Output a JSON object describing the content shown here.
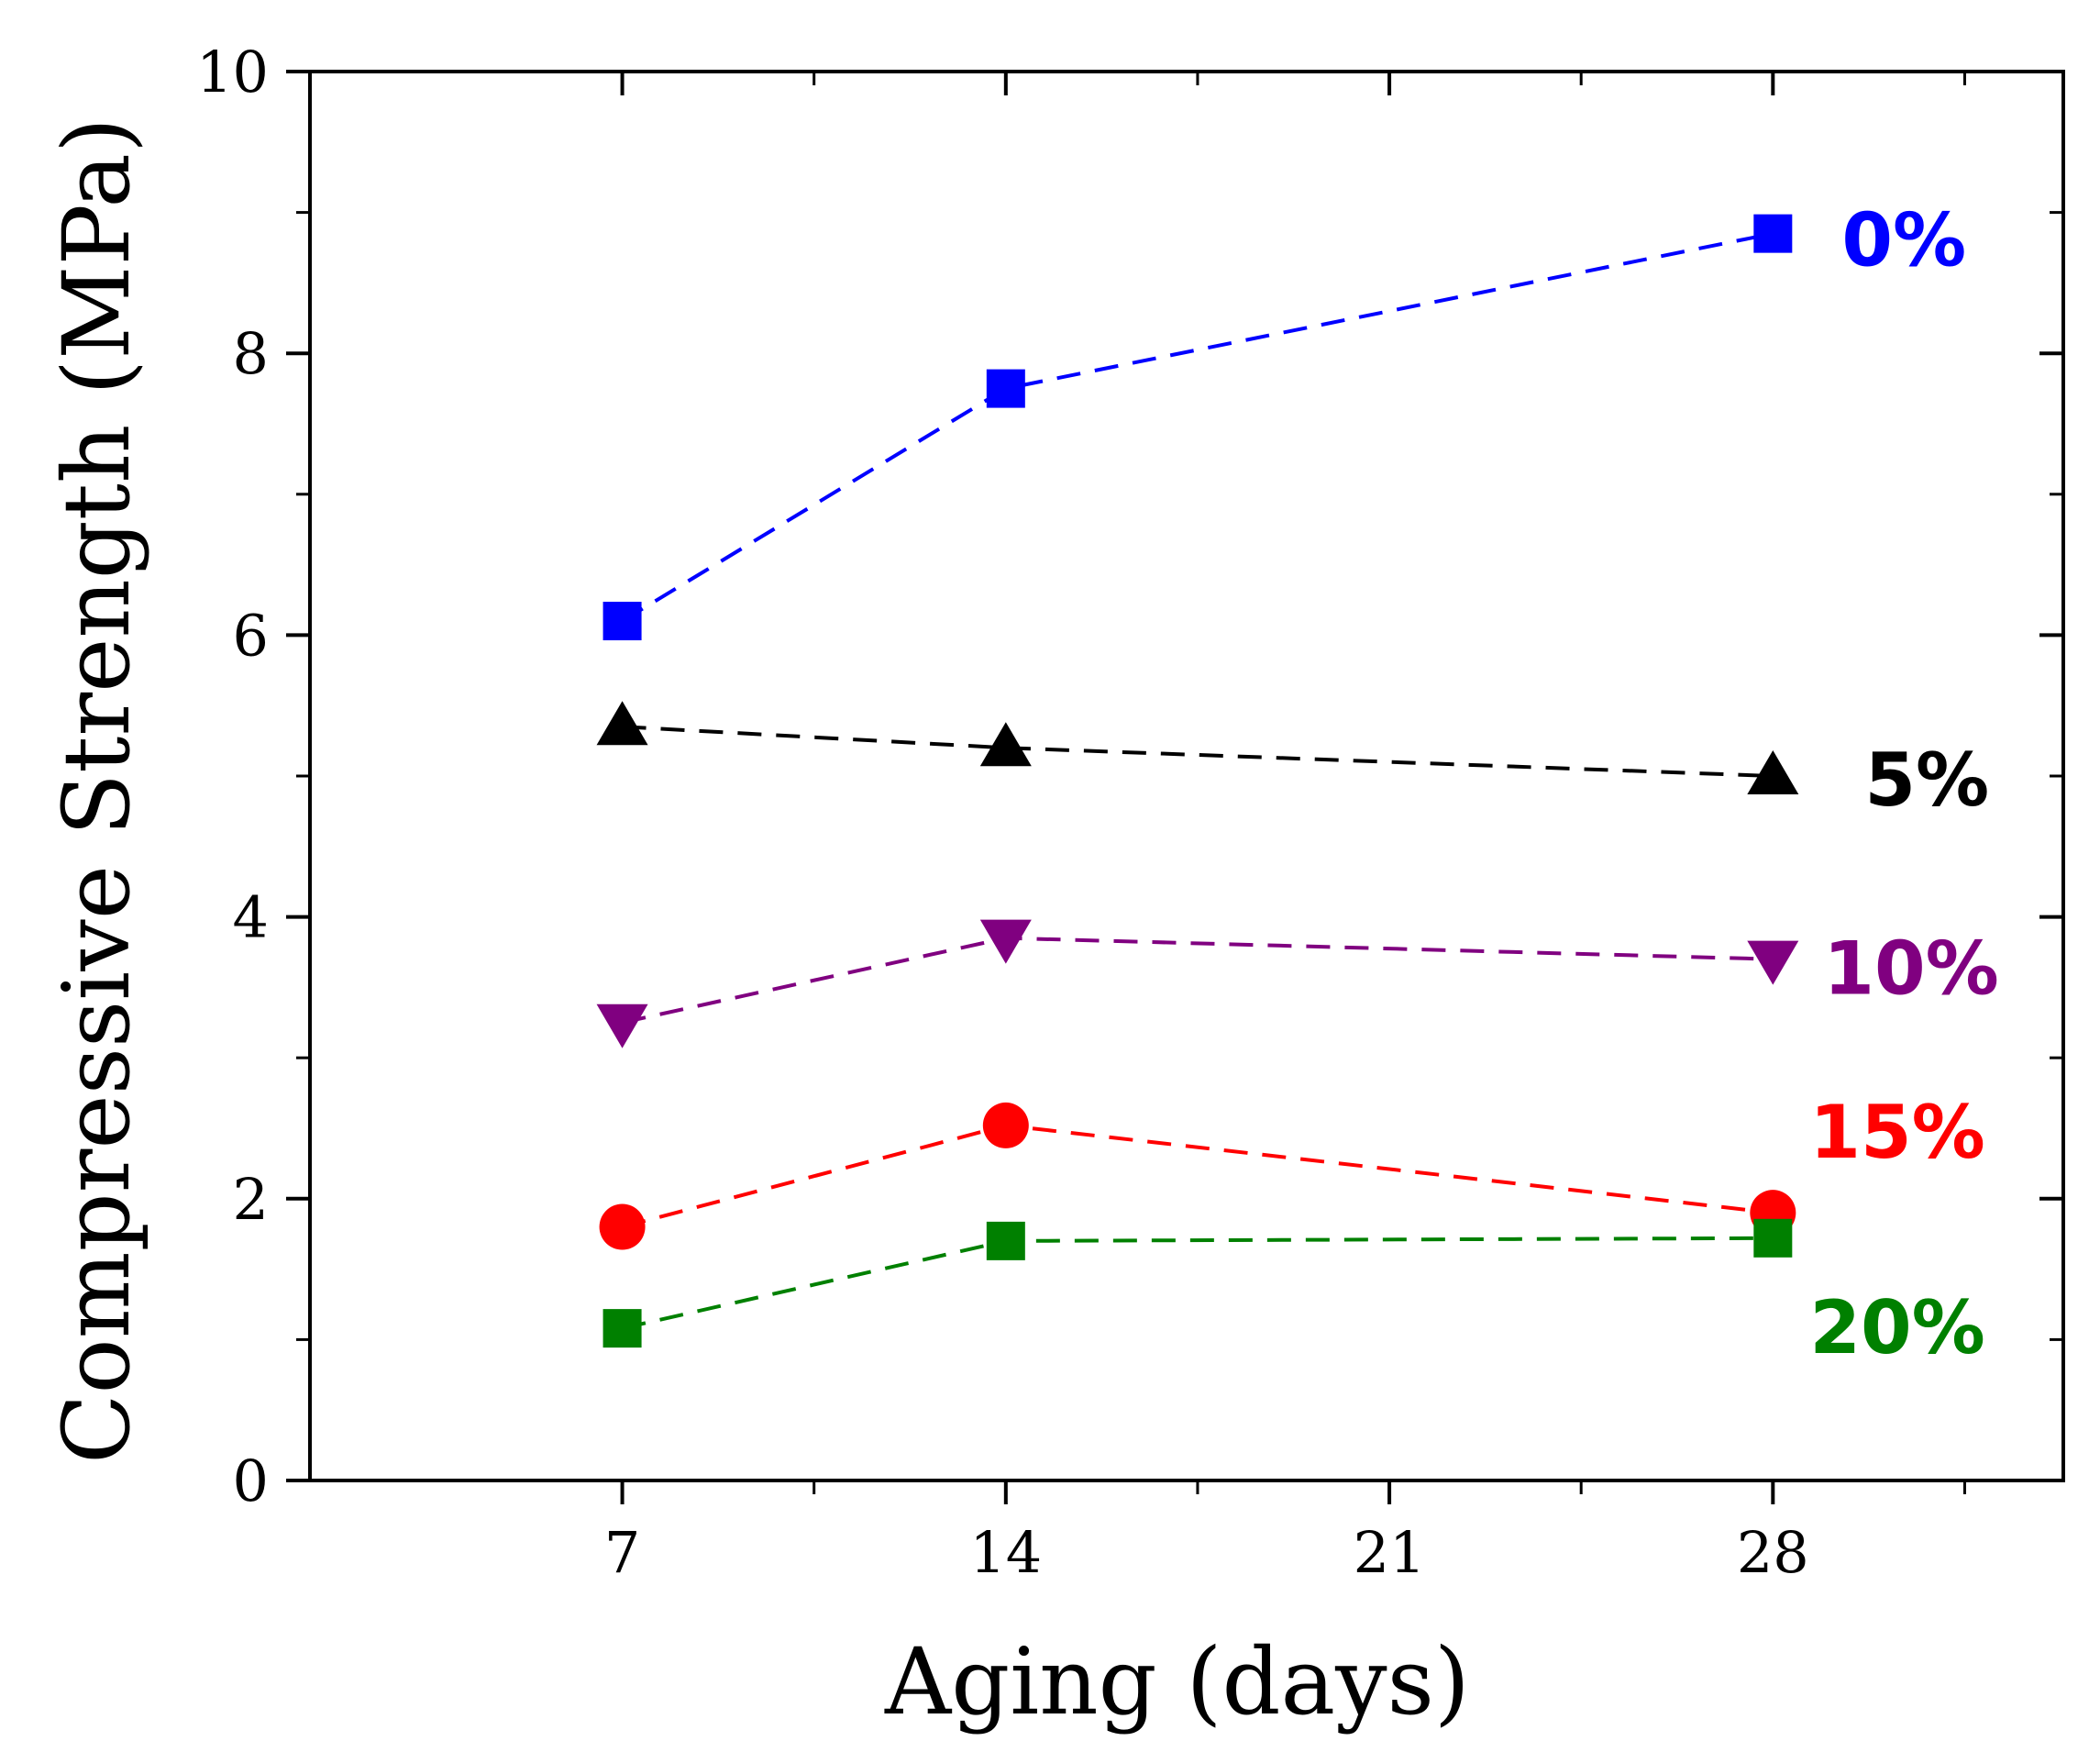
{
  "chart_data": {
    "type": "line",
    "title": "",
    "xlabel": "Aging (days)",
    "ylabel": "Compressive Strength (MPa)",
    "xlim": [
      1.3,
      33.3
    ],
    "ylim": [
      0,
      10
    ],
    "xticks": [
      7,
      14,
      21,
      28
    ],
    "xtick_labels": [
      "7",
      "14",
      "21",
      "28"
    ],
    "yticks": [
      0,
      2,
      4,
      6,
      8,
      10
    ],
    "ytick_labels": [
      "0",
      "2",
      "4",
      "6",
      "8",
      "10"
    ],
    "grid": false,
    "legend": "inline labels at right end of each series",
    "series": [
      {
        "name": "0%",
        "label": "0%",
        "color": "#0000ff",
        "marker": "square",
        "x": [
          7,
          14,
          28
        ],
        "values": [
          6.1,
          7.75,
          8.85
        ]
      },
      {
        "name": "5%",
        "label": "5%",
        "color": "#000000",
        "marker": "triangle-up",
        "x": [
          7,
          14,
          28
        ],
        "values": [
          5.35,
          5.2,
          5.0
        ]
      },
      {
        "name": "10%",
        "label": "10%",
        "color": "#800080",
        "marker": "triangle-down",
        "x": [
          7,
          14,
          28
        ],
        "values": [
          3.25,
          3.85,
          3.7
        ]
      },
      {
        "name": "15%",
        "label": "15%",
        "color": "#ff0000",
        "marker": "circle",
        "x": [
          7,
          14,
          28
        ],
        "values": [
          1.8,
          2.52,
          1.9
        ]
      },
      {
        "name": "20%",
        "label": "20%",
        "color": "#008000",
        "marker": "square",
        "x": [
          7,
          14,
          28
        ],
        "values": [
          1.08,
          1.7,
          1.72
        ]
      }
    ]
  }
}
